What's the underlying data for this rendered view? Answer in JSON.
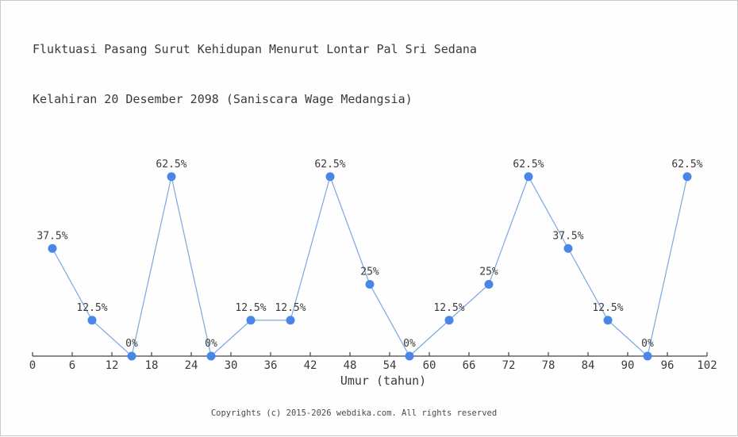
{
  "header": {
    "title_line1": "Fluktuasi Pasang Surut Kehidupan Menurut Lontar Pal Sri Sedana",
    "title_line2": "Kelahiran 20 Desember 2098 (Saniscara Wage Medangsia)"
  },
  "footer": {
    "copyright": "Copyrights (c) 2015-2026 webdika.com. All rights reserved"
  },
  "chart_data": {
    "type": "line",
    "title": "Fluktuasi Pasang Surut Kehidupan Menurut Lontar Pal Sri Sedana Kelahiran 20 Desember 2098 (Saniscara Wage Medangsia)",
    "x": [
      3,
      9,
      15,
      21,
      27,
      33,
      39,
      45,
      51,
      57,
      63,
      69,
      75,
      81,
      87,
      93,
      99
    ],
    "values": [
      37.5,
      12.5,
      0,
      62.5,
      0,
      12.5,
      12.5,
      62.5,
      25,
      0,
      12.5,
      25,
      62.5,
      37.5,
      12.5,
      0,
      62.5
    ],
    "point_labels": [
      "37.5%",
      "12.5%",
      "0%",
      "62.5%",
      "0%",
      "12.5%",
      "12.5%",
      "62.5%",
      "25%",
      "0%",
      "12.5%",
      "25%",
      "62.5%",
      "37.5%",
      "12.5%",
      "0%",
      "62.5%"
    ],
    "xlabel": "Umur (tahun)",
    "ylabel": "",
    "x_ticks": [
      0,
      6,
      12,
      18,
      24,
      30,
      36,
      42,
      48,
      54,
      60,
      66,
      72,
      78,
      84,
      90,
      96,
      102
    ],
    "xlim": [
      0,
      102
    ],
    "ylim": [
      0,
      70
    ],
    "grid": false,
    "legend_position": "none",
    "colors": {
      "line": "#7aa7e0",
      "marker": "#4a86e8",
      "axis": "#444444",
      "label_text": "#3a3a3a",
      "tick_text": "#3a3a3a"
    }
  }
}
